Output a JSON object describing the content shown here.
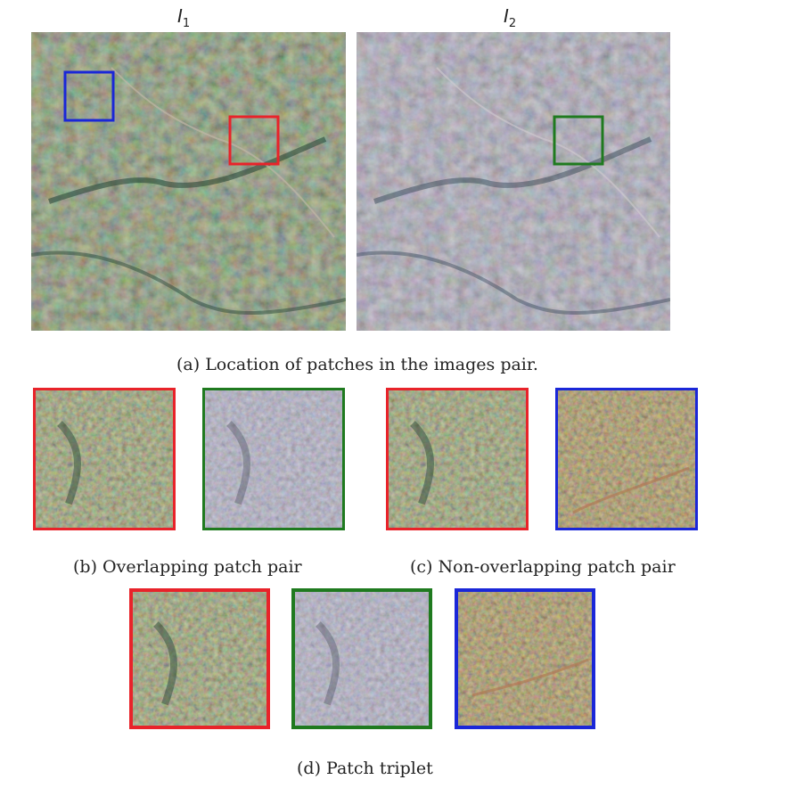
{
  "figure": {
    "top": {
      "left_label": {
        "base": "I",
        "sub": "1"
      },
      "right_label": {
        "base": "I",
        "sub": "2"
      },
      "caption": "(a) Location of patches in the images pair."
    },
    "row_bc": {
      "caption_b": "(b) Overlapping patch pair",
      "caption_c": "(c) Non-overlapping patch pair"
    },
    "row_d": {
      "caption_d": "(d) Patch triplet"
    },
    "colors": {
      "red": "#e8232a",
      "green": "#1f7a1f",
      "blue": "#1a27d8"
    }
  }
}
